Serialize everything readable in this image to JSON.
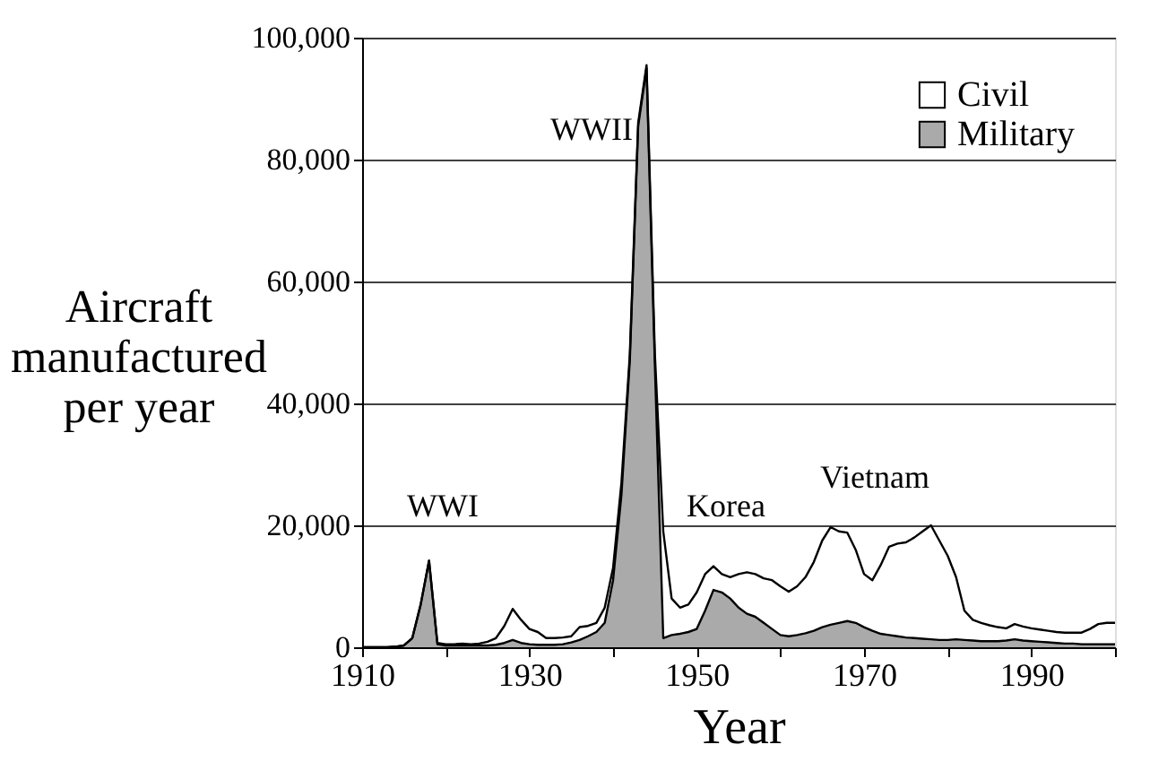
{
  "chart_data": {
    "type": "area",
    "stacked": true,
    "xlabel": "Year",
    "ylabel": "Aircraft manufactured per year",
    "x": [
      1910,
      1911,
      1912,
      1913,
      1914,
      1915,
      1916,
      1917,
      1918,
      1919,
      1920,
      1921,
      1922,
      1923,
      1924,
      1925,
      1926,
      1927,
      1928,
      1929,
      1930,
      1931,
      1932,
      1933,
      1934,
      1935,
      1936,
      1937,
      1938,
      1939,
      1940,
      1941,
      1942,
      1943,
      1944,
      1945,
      1946,
      1947,
      1948,
      1949,
      1950,
      1951,
      1952,
      1953,
      1954,
      1955,
      1956,
      1957,
      1958,
      1959,
      1960,
      1961,
      1962,
      1963,
      1964,
      1965,
      1966,
      1967,
      1968,
      1969,
      1970,
      1971,
      1972,
      1973,
      1974,
      1975,
      1976,
      1977,
      1978,
      1979,
      1980,
      1981,
      1982,
      1983,
      1984,
      1985,
      1986,
      1987,
      1988,
      1989,
      1990,
      1991,
      1992,
      1993,
      1994,
      1995,
      1996,
      1997,
      1998,
      1999,
      2000
    ],
    "series": [
      {
        "name": "Military",
        "color": "#aaaaaa",
        "values": [
          0,
          0,
          0,
          0,
          100,
          300,
          1500,
          7000,
          14200,
          500,
          300,
          300,
          300,
          300,
          300,
          300,
          400,
          700,
          1200,
          700,
          500,
          400,
          400,
          400,
          500,
          800,
          1200,
          1800,
          2500,
          4000,
          11000,
          25000,
          47000,
          85500,
          95000,
          46000,
          1500,
          2000,
          2200,
          2500,
          3000,
          6000,
          9400,
          9000,
          8000,
          6500,
          5500,
          5000,
          4000,
          3000,
          2000,
          1800,
          2000,
          2300,
          2700,
          3300,
          3700,
          4000,
          4300,
          4000,
          3300,
          2700,
          2200,
          2000,
          1800,
          1600,
          1500,
          1400,
          1300,
          1200,
          1200,
          1300,
          1200,
          1100,
          1000,
          1000,
          1000,
          1100,
          1300,
          1100,
          1000,
          900,
          800,
          700,
          600,
          600,
          500,
          500,
          500,
          500,
          500
        ]
      },
      {
        "name": "Civil",
        "color": "#ffffff",
        "values": [
          0,
          0,
          0,
          0,
          0,
          0,
          0,
          0,
          0,
          200,
          200,
          200,
          300,
          200,
          300,
          600,
          1100,
          2800,
          5100,
          3800,
          2500,
          2100,
          1100,
          1100,
          1100,
          1000,
          2100,
          1700,
          1500,
          2500,
          2000,
          2000,
          1000,
          500,
          500,
          2000,
          17500,
          6000,
          4300,
          4500,
          6000,
          6000,
          3900,
          3000,
          3500,
          5500,
          6800,
          7000,
          7300,
          8000,
          8000,
          7300,
          8000,
          9200,
          11300,
          14200,
          16000,
          15000,
          14500,
          12000,
          8700,
          8300,
          11300,
          14500,
          15200,
          15600,
          16500,
          17600,
          18700,
          16300,
          13800,
          10200,
          4800,
          3400,
          3000,
          2600,
          2300,
          2000,
          2500,
          2300,
          2100,
          2000,
          1900,
          1800,
          1800,
          1800,
          1900,
          2500,
          3300,
          3500,
          3500
        ]
      }
    ],
    "xlim": [
      1910,
      2000
    ],
    "xticks": [
      1910,
      {
        "value": 1920,
        "label": null
      },
      1930,
      {
        "value": 1940,
        "label": null
      },
      1950,
      {
        "value": 1960,
        "label": null
      },
      1970,
      {
        "value": 1980,
        "label": null
      },
      1990,
      {
        "value": 2000,
        "label": null
      }
    ],
    "ylim": [
      0,
      100000
    ],
    "yticks": [
      0,
      {
        "value": 20000,
        "label": "20,000"
      },
      {
        "value": 40000,
        "label": "40,000"
      },
      {
        "value": 60000,
        "label": "60,000"
      },
      {
        "value": 80000,
        "label": "80,000"
      },
      {
        "value": 100000,
        "label": "100,000"
      }
    ],
    "grid": "y",
    "legend": "top right",
    "annotations": [
      "WWI",
      "WWII",
      "Korea",
      "Vietnam"
    ]
  }
}
